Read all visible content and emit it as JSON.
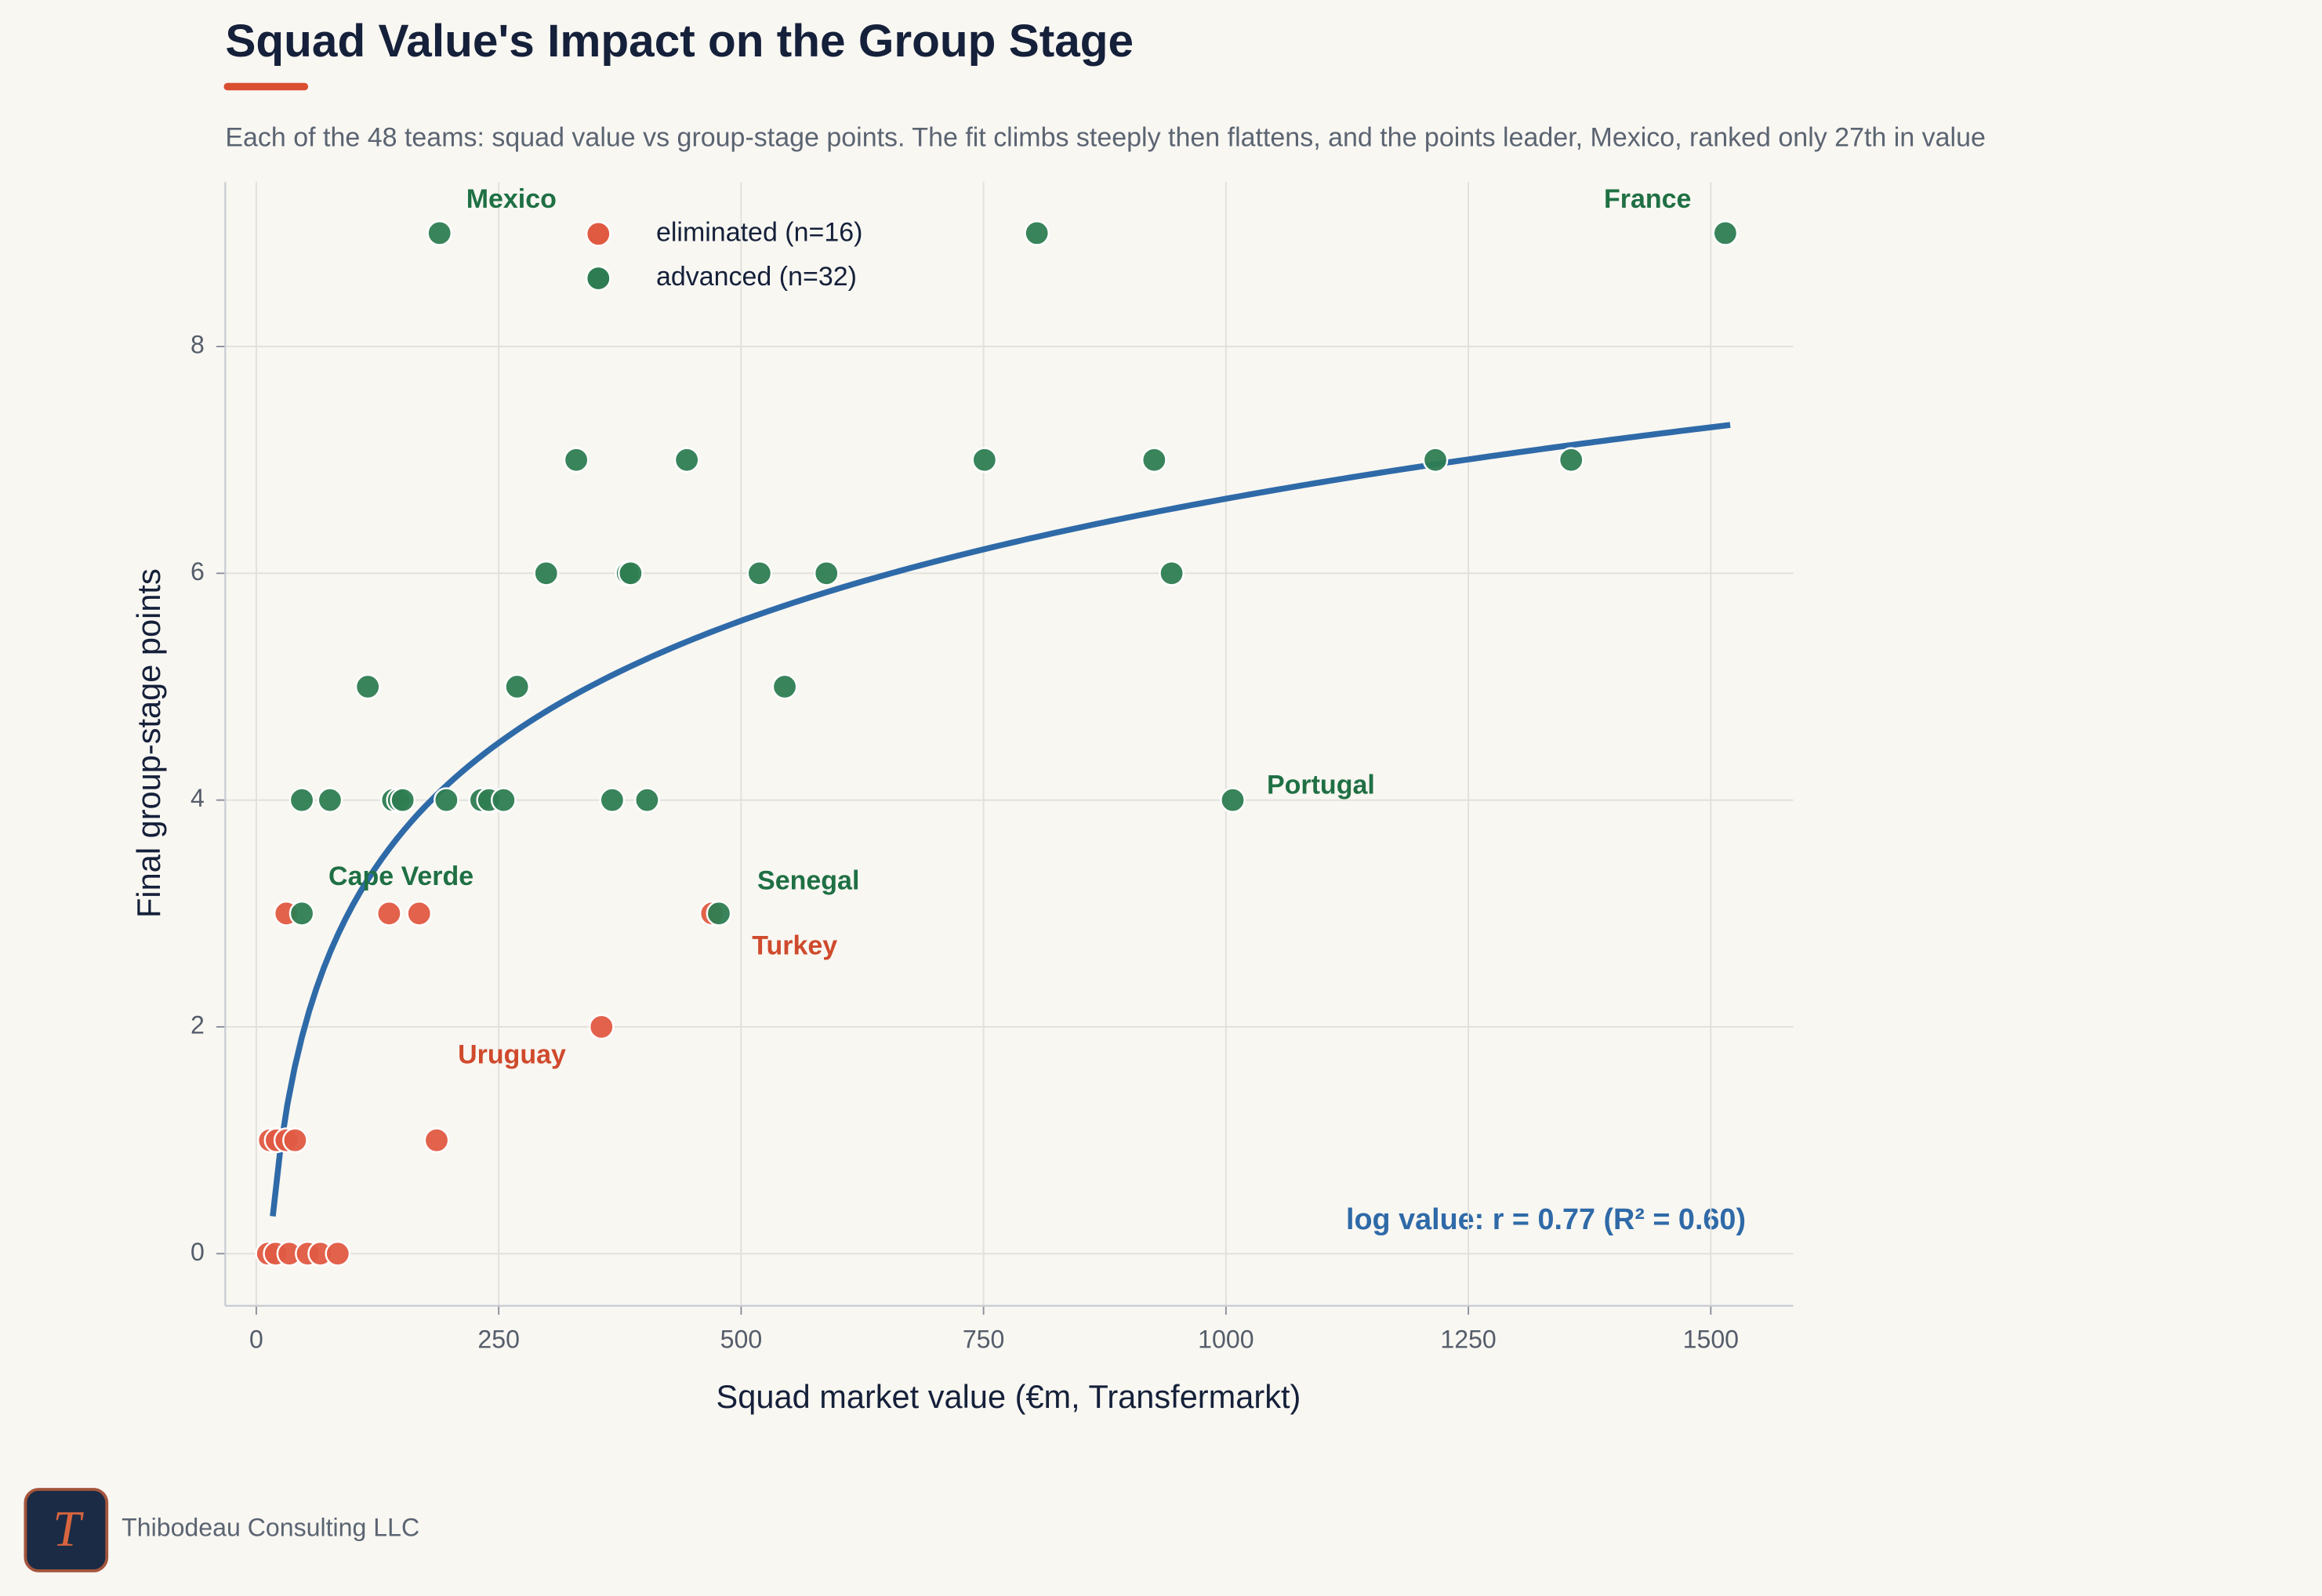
{
  "chart_data": {
    "type": "scatter",
    "title": "Squad Value's Impact on the Group Stage",
    "subtitle": "Each of the 48 teams: squad value vs group-stage points. The fit climbs steeply then flattens, and the points leader, Mexico, ranked only 27th in value",
    "x_label": "Squad market value (€m, Transfermarkt)",
    "y_label": "Final group-stage points",
    "xlim": [
      -32,
      1585
    ],
    "ylim": [
      -0.46,
      9.45
    ],
    "xticks": [
      0,
      250,
      500,
      750,
      1000,
      1250,
      1500
    ],
    "yticks": [
      0,
      2,
      4,
      6,
      8
    ],
    "grid": true,
    "series": [
      {
        "name": "eliminated (n=16)",
        "color": "#e05a42",
        "x": [
          14,
          21,
          31,
          40,
          12,
          20,
          34,
          53,
          66,
          84,
          31,
          137,
          168,
          186,
          356,
          470
        ],
        "values": [
          1,
          1,
          1,
          1,
          0,
          0,
          0,
          0,
          0,
          0,
          3,
          3,
          3,
          1,
          2,
          3
        ],
        "labels": [
          null,
          null,
          null,
          null,
          null,
          null,
          null,
          null,
          null,
          null,
          null,
          null,
          null,
          null,
          "Uruguay",
          "Turkey"
        ]
      },
      {
        "name": "advanced (n=32)",
        "color": "#2e7d52",
        "x": [
          189,
          805,
          1515,
          330,
          444,
          751,
          926,
          1216,
          1356,
          299,
          383,
          386,
          519,
          588,
          944,
          115,
          269,
          545,
          47,
          76,
          141,
          147,
          151,
          196,
          232,
          240,
          255,
          367,
          403,
          1007,
          47,
          477
        ],
        "values": [
          9,
          9,
          9,
          7,
          7,
          7,
          7,
          7,
          7,
          6,
          6,
          6,
          6,
          6,
          6,
          5,
          5,
          5,
          4,
          4,
          4,
          4,
          4,
          4,
          4,
          4,
          4,
          4,
          4,
          4,
          3,
          3
        ],
        "labels": [
          "Mexico",
          null,
          "France",
          null,
          null,
          null,
          null,
          null,
          null,
          null,
          null,
          null,
          null,
          null,
          null,
          null,
          null,
          null,
          null,
          null,
          null,
          null,
          null,
          null,
          null,
          null,
          null,
          null,
          null,
          "Portugal",
          "Cape Verde",
          "Senegal"
        ]
      }
    ],
    "fit": {
      "type": "log",
      "color": "#2f6aa8",
      "coef": [
        -4.07,
        1.553
      ],
      "xrange": [
        17,
        1520
      ]
    },
    "fit_label": "log value: r = 0.77  (R² = 0.60)",
    "footer": {
      "logo": "T",
      "text": "Thibodeau Consulting LLC"
    }
  }
}
